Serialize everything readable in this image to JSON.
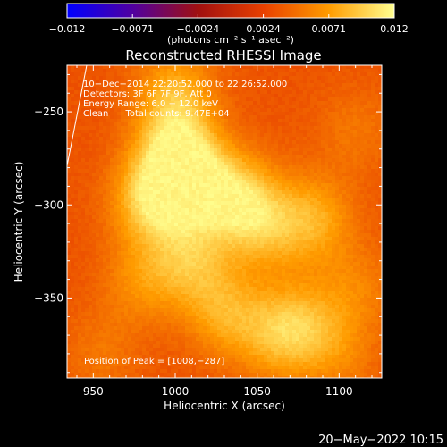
{
  "chart_data": {
    "type": "heatmap",
    "title": "Reconstructed RHESSI Image",
    "xlabel": "Heliocentric X (arcsec)",
    "ylabel": "Heliocentric Y (arcsec)",
    "xlim": [
      934,
      1126
    ],
    "ylim": [
      -393,
      -225
    ],
    "x_ticks": [
      950,
      1000,
      1050,
      1100
    ],
    "y_ticks": [
      -250,
      -300,
      -350
    ],
    "colorbar": {
      "label": "(photons cm⁻² s⁻¹ asec⁻²)",
      "range": [
        -0.012,
        0.012
      ],
      "ticks": [
        "−0.012",
        "−0.0071",
        "−0.0024",
        "0.0024",
        "0.0071",
        "0.012"
      ],
      "colormap": [
        "#0000ff",
        "#5000a0",
        "#a01010",
        "#e84000",
        "#ff9c00",
        "#ffff90"
      ]
    },
    "info": [
      "10−Dec−2014 22:20:52.000 to 22:26:52.000",
      "Detectors: 3F 6F 7F 9F, Att 0",
      "Energy Range: 6.0 − 12.0 keV",
      "Clean      Total counts: 9.47E+04"
    ],
    "peak_text": "Position of Peak = [1008,−287]",
    "peak": [
      1008,
      -287
    ],
    "blobs": [
      {
        "x": 1008,
        "y": -287,
        "v": 0.0115
      },
      {
        "x": 986,
        "y": -297,
        "v": 0.0108
      },
      {
        "x": 1037,
        "y": -296,
        "v": 0.0105
      },
      {
        "x": 1000,
        "y": -268,
        "v": 0.0095
      },
      {
        "x": 1000,
        "y": -240,
        "v": 0.0085
      },
      {
        "x": 1085,
        "y": -308,
        "v": 0.0085
      },
      {
        "x": 1055,
        "y": -312,
        "v": 0.0082
      },
      {
        "x": 1010,
        "y": -330,
        "v": 0.0088
      },
      {
        "x": 1030,
        "y": -358,
        "v": 0.0082
      },
      {
        "x": 1078,
        "y": -365,
        "v": 0.008
      },
      {
        "x": 1060,
        "y": -370,
        "v": 0.0078
      },
      {
        "x": 980,
        "y": -340,
        "v": 0.007
      },
      {
        "x": 1110,
        "y": -345,
        "v": 0.0062
      },
      {
        "x": 955,
        "y": -380,
        "v": 0.0055
      },
      {
        "x": 1110,
        "y": -260,
        "v": 0.0055
      },
      {
        "x": 1100,
        "y": -380,
        "v": 0.006
      }
    ],
    "limb_line": [
      [
        934,
        -279
      ],
      [
        946,
        -225
      ]
    ]
  },
  "timestamp": "20−May−2022 10:15"
}
